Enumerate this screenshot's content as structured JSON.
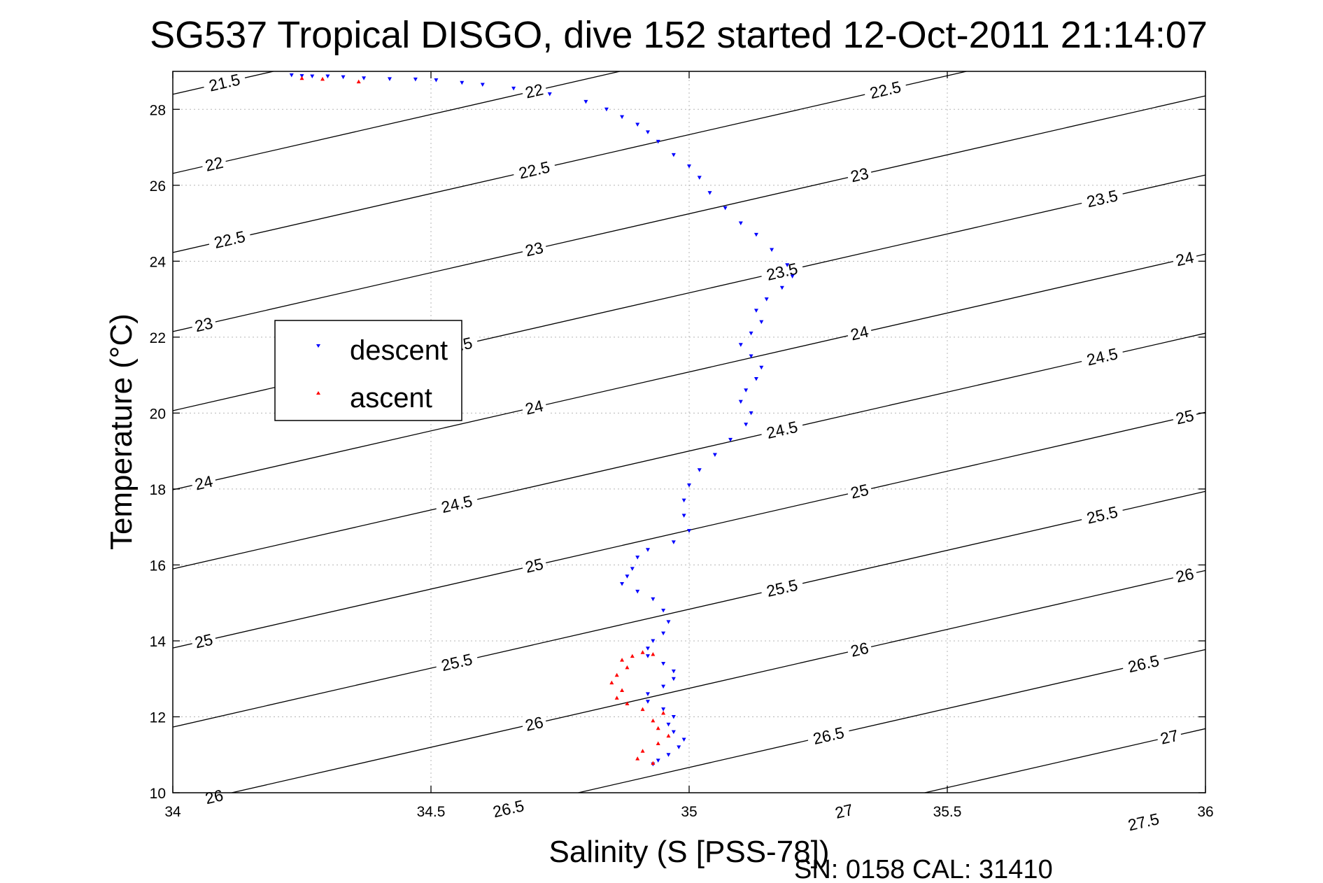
{
  "chart_data": {
    "type": "scatter",
    "title": "SG537 Tropical DISGO, dive 152 started 12-Oct-2011 21:14:07",
    "xlabel": "Salinity (S [PSS-78])",
    "ylabel": "Temperature (°C)",
    "footer": "SN: 0158  CAL: 31410",
    "xlim": [
      34,
      36
    ],
    "ylim": [
      10,
      29
    ],
    "xticks": [
      34,
      34.5,
      35,
      35.5,
      36
    ],
    "xtick_labels": [
      "34",
      "34.5",
      "35",
      "35.5",
      "36"
    ],
    "yticks": [
      10,
      12,
      14,
      16,
      18,
      20,
      22,
      24,
      26,
      28
    ],
    "ytick_labels": [
      "10",
      "12",
      "14",
      "16",
      "18",
      "20",
      "22",
      "24",
      "26",
      "28"
    ],
    "grid": true,
    "legend": {
      "placement": "left",
      "entries": [
        {
          "label": "descent",
          "color": "#0000ff"
        },
        {
          "label": "ascent",
          "color": "#ff0000"
        }
      ]
    },
    "isopycnals": {
      "color": "#000000",
      "levels": [
        21.5,
        22,
        22.5,
        23,
        23.5,
        24,
        24.5,
        25,
        25.5,
        26,
        26.5,
        27,
        27.5
      ],
      "level_labels": [
        "21.5",
        "22",
        "22.5",
        "23",
        "23.5",
        "24",
        "24.5",
        "25",
        "25.5",
        "26",
        "26.5",
        "27",
        "27.5"
      ],
      "label_positions": [
        {
          "level": 21.5,
          "s": 34.1
        },
        {
          "level": 22,
          "s": 34.08
        },
        {
          "level": 22,
          "s": 34.7
        },
        {
          "level": 22.5,
          "s": 34.11
        },
        {
          "level": 22.5,
          "s": 34.7
        },
        {
          "level": 22.5,
          "s": 35.38
        },
        {
          "level": 23,
          "s": 34.06
        },
        {
          "level": 23,
          "s": 34.7
        },
        {
          "level": 23,
          "s": 35.33
        },
        {
          "level": 23.5,
          "s": 34.55
        },
        {
          "level": 23.5,
          "s": 35.18
        },
        {
          "level": 23.5,
          "s": 35.8
        },
        {
          "level": 24,
          "s": 34.06
        },
        {
          "level": 24,
          "s": 34.7
        },
        {
          "level": 24,
          "s": 35.33
        },
        {
          "level": 24,
          "s": 35.96
        },
        {
          "level": 24.5,
          "s": 34.55
        },
        {
          "level": 24.5,
          "s": 35.18
        },
        {
          "level": 24.5,
          "s": 35.8
        },
        {
          "level": 25,
          "s": 34.06
        },
        {
          "level": 25,
          "s": 34.7
        },
        {
          "level": 25,
          "s": 35.33
        },
        {
          "level": 25,
          "s": 35.96
        },
        {
          "level": 25.5,
          "s": 34.55
        },
        {
          "level": 25.5,
          "s": 35.18
        },
        {
          "level": 25.5,
          "s": 35.8
        },
        {
          "level": 26,
          "s": 34.08
        },
        {
          "level": 26,
          "s": 34.7
        },
        {
          "level": 26,
          "s": 35.33
        },
        {
          "level": 26,
          "s": 35.96
        },
        {
          "level": 26.5,
          "s": 34.65
        },
        {
          "level": 26.5,
          "s": 35.27
        },
        {
          "level": 26.5,
          "s": 35.88
        },
        {
          "level": 27,
          "s": 35.3
        },
        {
          "level": 27,
          "s": 35.93
        },
        {
          "level": 27.5,
          "s": 35.88
        }
      ]
    },
    "series": [
      {
        "name": "descent",
        "color": "#0000ff",
        "marker": "triangle-down",
        "points": [
          [
            34.23,
            28.9
          ],
          [
            34.25,
            28.88
          ],
          [
            34.27,
            28.87
          ],
          [
            34.3,
            28.87
          ],
          [
            34.33,
            28.85
          ],
          [
            34.37,
            28.82
          ],
          [
            34.42,
            28.8
          ],
          [
            34.47,
            28.79
          ],
          [
            34.51,
            28.77
          ],
          [
            34.56,
            28.7
          ],
          [
            34.6,
            28.65
          ],
          [
            34.66,
            28.55
          ],
          [
            34.73,
            28.4
          ],
          [
            34.8,
            28.2
          ],
          [
            34.84,
            28.0
          ],
          [
            34.87,
            27.8
          ],
          [
            34.9,
            27.6
          ],
          [
            34.92,
            27.4
          ],
          [
            34.94,
            27.15
          ],
          [
            34.97,
            26.8
          ],
          [
            35.0,
            26.5
          ],
          [
            35.02,
            26.2
          ],
          [
            35.04,
            25.8
          ],
          [
            35.07,
            25.4
          ],
          [
            35.1,
            25.0
          ],
          [
            35.13,
            24.7
          ],
          [
            35.16,
            24.3
          ],
          [
            35.19,
            23.9
          ],
          [
            35.2,
            23.6
          ],
          [
            35.18,
            23.3
          ],
          [
            35.15,
            23.0
          ],
          [
            35.13,
            22.7
          ],
          [
            35.14,
            22.4
          ],
          [
            35.12,
            22.1
          ],
          [
            35.1,
            21.8
          ],
          [
            35.12,
            21.5
          ],
          [
            35.14,
            21.2
          ],
          [
            35.13,
            20.9
          ],
          [
            35.11,
            20.6
          ],
          [
            35.1,
            20.3
          ],
          [
            35.12,
            20.0
          ],
          [
            35.11,
            19.7
          ],
          [
            35.08,
            19.3
          ],
          [
            35.05,
            18.9
          ],
          [
            35.02,
            18.5
          ],
          [
            35.0,
            18.1
          ],
          [
            34.99,
            17.7
          ],
          [
            34.99,
            17.3
          ],
          [
            35.0,
            16.9
          ],
          [
            34.97,
            16.6
          ],
          [
            34.92,
            16.4
          ],
          [
            34.9,
            16.2
          ],
          [
            34.89,
            15.9
          ],
          [
            34.88,
            15.7
          ],
          [
            34.87,
            15.5
          ],
          [
            34.9,
            15.3
          ],
          [
            34.93,
            15.1
          ],
          [
            34.95,
            14.8
          ],
          [
            34.96,
            14.5
          ],
          [
            34.95,
            14.2
          ],
          [
            34.93,
            14.0
          ],
          [
            34.92,
            13.8
          ],
          [
            34.92,
            13.6
          ],
          [
            34.95,
            13.4
          ],
          [
            34.97,
            13.2
          ],
          [
            34.97,
            13.0
          ],
          [
            34.95,
            12.8
          ],
          [
            34.92,
            12.6
          ],
          [
            34.92,
            12.4
          ],
          [
            34.95,
            12.2
          ],
          [
            34.97,
            12.0
          ],
          [
            34.96,
            11.8
          ],
          [
            34.97,
            11.6
          ],
          [
            34.99,
            11.4
          ],
          [
            34.98,
            11.2
          ],
          [
            34.96,
            11.0
          ],
          [
            34.94,
            10.85
          ],
          [
            34.93,
            10.75
          ]
        ]
      },
      {
        "name": "ascent",
        "color": "#ff0000",
        "marker": "triangle-up",
        "points": [
          [
            34.25,
            28.82
          ],
          [
            34.29,
            28.8
          ],
          [
            34.36,
            28.73
          ],
          [
            34.93,
            10.78
          ],
          [
            34.9,
            10.9
          ],
          [
            34.91,
            11.1
          ],
          [
            34.94,
            11.3
          ],
          [
            34.96,
            11.5
          ],
          [
            34.94,
            11.7
          ],
          [
            34.93,
            11.9
          ],
          [
            34.95,
            12.1
          ],
          [
            34.91,
            12.2
          ],
          [
            34.88,
            12.35
          ],
          [
            34.86,
            12.5
          ],
          [
            34.87,
            12.7
          ],
          [
            34.85,
            12.9
          ],
          [
            34.86,
            13.1
          ],
          [
            34.88,
            13.3
          ],
          [
            34.87,
            13.5
          ],
          [
            34.89,
            13.6
          ],
          [
            34.91,
            13.7
          ],
          [
            34.93,
            13.65
          ]
        ]
      }
    ]
  }
}
